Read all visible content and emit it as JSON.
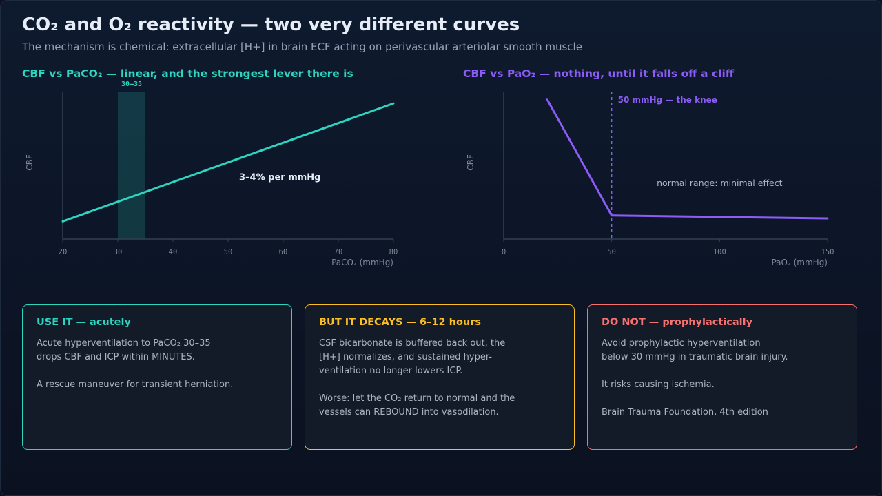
{
  "header": {
    "title": "CO₂ and O₂ reactivity — two very different curves",
    "subtitle": "The mechanism is chemical: extracellular [H+] in brain ECF acting on perivascular arteriolar smooth muscle"
  },
  "colors": {
    "teal": "#2dd4bf",
    "purple": "#8b5cf6",
    "amber": "#fbbf24",
    "red": "#f87171"
  },
  "chart_data": [
    {
      "type": "line",
      "title": "CBF vs PaCO₂ — linear, and the strongest lever there is",
      "xlabel": "PaCO₂ (mmHg)",
      "ylabel": "CBF",
      "xlim": [
        20,
        80
      ],
      "ylim": [
        0,
        100
      ],
      "x_ticks": [
        20,
        30,
        40,
        50,
        60,
        70,
        80
      ],
      "series": [
        {
          "x": [
            20,
            80
          ],
          "y": [
            12,
            92
          ]
        }
      ],
      "highlight_band": {
        "x": [
          30,
          35
        ],
        "label": "30–35"
      },
      "annotation": {
        "text": "3–4% per mmHg",
        "x": 52,
        "y": 40
      }
    },
    {
      "type": "line",
      "title": "CBF vs PaO₂ — nothing, until it falls off a cliff",
      "xlabel": "PaO₂ (mmHg)",
      "ylabel": "CBF",
      "xlim": [
        0,
        150
      ],
      "ylim": [
        0,
        100
      ],
      "x_ticks": [
        0,
        50,
        100,
        150
      ],
      "series": [
        {
          "x": [
            20,
            50,
            150
          ],
          "y": [
            95,
            16,
            14
          ]
        }
      ],
      "reference_line": {
        "x": 50,
        "label": "50 mmHg — the knee"
      },
      "annotation": {
        "text": "normal range: minimal effect",
        "x": 100,
        "y": 36
      }
    }
  ],
  "cards": [
    {
      "title": "USE IT — acutely",
      "lines": [
        "Acute hyperventilation to PaCO₂ 30–35",
        "drops CBF and ICP within MINUTES.",
        "",
        "A rescue maneuver for transient herniation."
      ]
    },
    {
      "title": "BUT IT DECAYS — 6–12 hours",
      "lines": [
        "CSF bicarbonate is buffered back out, the",
        "[H+] normalizes, and sustained hyper-",
        "ventilation no longer lowers ICP.",
        "",
        "Worse: let the CO₂ return to normal and the",
        "vessels can REBOUND into vasodilation."
      ]
    },
    {
      "title": "DO NOT — prophylactically",
      "lines": [
        "Avoid prophylactic hyperventilation",
        "below 30 mmHg in traumatic brain injury.",
        "",
        "It risks causing ischemia.",
        "",
        "Brain Trauma Foundation, 4th edition"
      ]
    }
  ]
}
